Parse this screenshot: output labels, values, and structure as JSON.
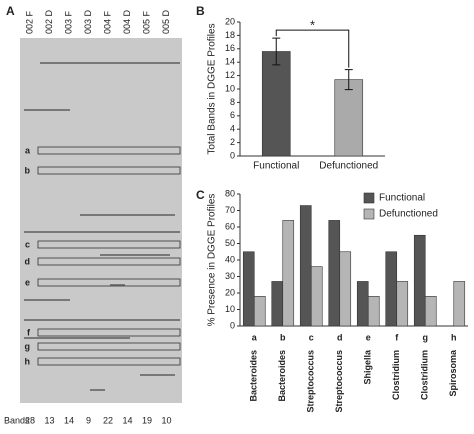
{
  "gel": {
    "panel_label": "A",
    "lanes": [
      "002 F",
      "002 D",
      "003 F",
      "003 D",
      "004 F",
      "004 D",
      "005 F",
      "005 D"
    ],
    "band_labels": [
      "a",
      "b",
      "c",
      "d",
      "e",
      "f",
      "g",
      "h"
    ],
    "bands_label": "Bands",
    "band_counts": [
      28,
      13,
      14,
      9,
      22,
      14,
      19,
      10
    ]
  },
  "chart_data": [
    {
      "type": "bar",
      "panel_label": "B",
      "ylabel": "Total Bands in DGGE Profiles",
      "categories": [
        "Functional",
        "Defunctioned"
      ],
      "values": [
        15.6,
        11.4
      ],
      "errors": [
        2.0,
        1.5
      ],
      "colors": [
        "#555555",
        "#aaaaaa"
      ],
      "annotation": "*",
      "ylim": [
        0,
        20
      ],
      "yticks": [
        0,
        2,
        4,
        6,
        8,
        10,
        12,
        14,
        16,
        18,
        20
      ]
    },
    {
      "type": "grouped-bar",
      "panel_label": "C",
      "ylabel": "% Presence in DGGE Profiles",
      "categories": [
        "a",
        "b",
        "c",
        "d",
        "e",
        "f",
        "g",
        "h"
      ],
      "taxa": [
        "Bacteroides",
        "Bacteroides",
        "Streptococcus",
        "Streptococcus",
        "Shigella",
        "Clostridium",
        "Clostridium",
        "Spirosoma"
      ],
      "series": [
        {
          "name": "Functional",
          "color": "#555555",
          "values": [
            45,
            27,
            73,
            64,
            27,
            45,
            55,
            0
          ]
        },
        {
          "name": "Defunctioned",
          "color": "#b5b5b5",
          "values": [
            18,
            64,
            36,
            45,
            18,
            27,
            18,
            27
          ]
        }
      ],
      "ylim": [
        0,
        80
      ],
      "yticks": [
        0,
        10,
        20,
        30,
        40,
        50,
        60,
        70,
        80
      ]
    }
  ]
}
